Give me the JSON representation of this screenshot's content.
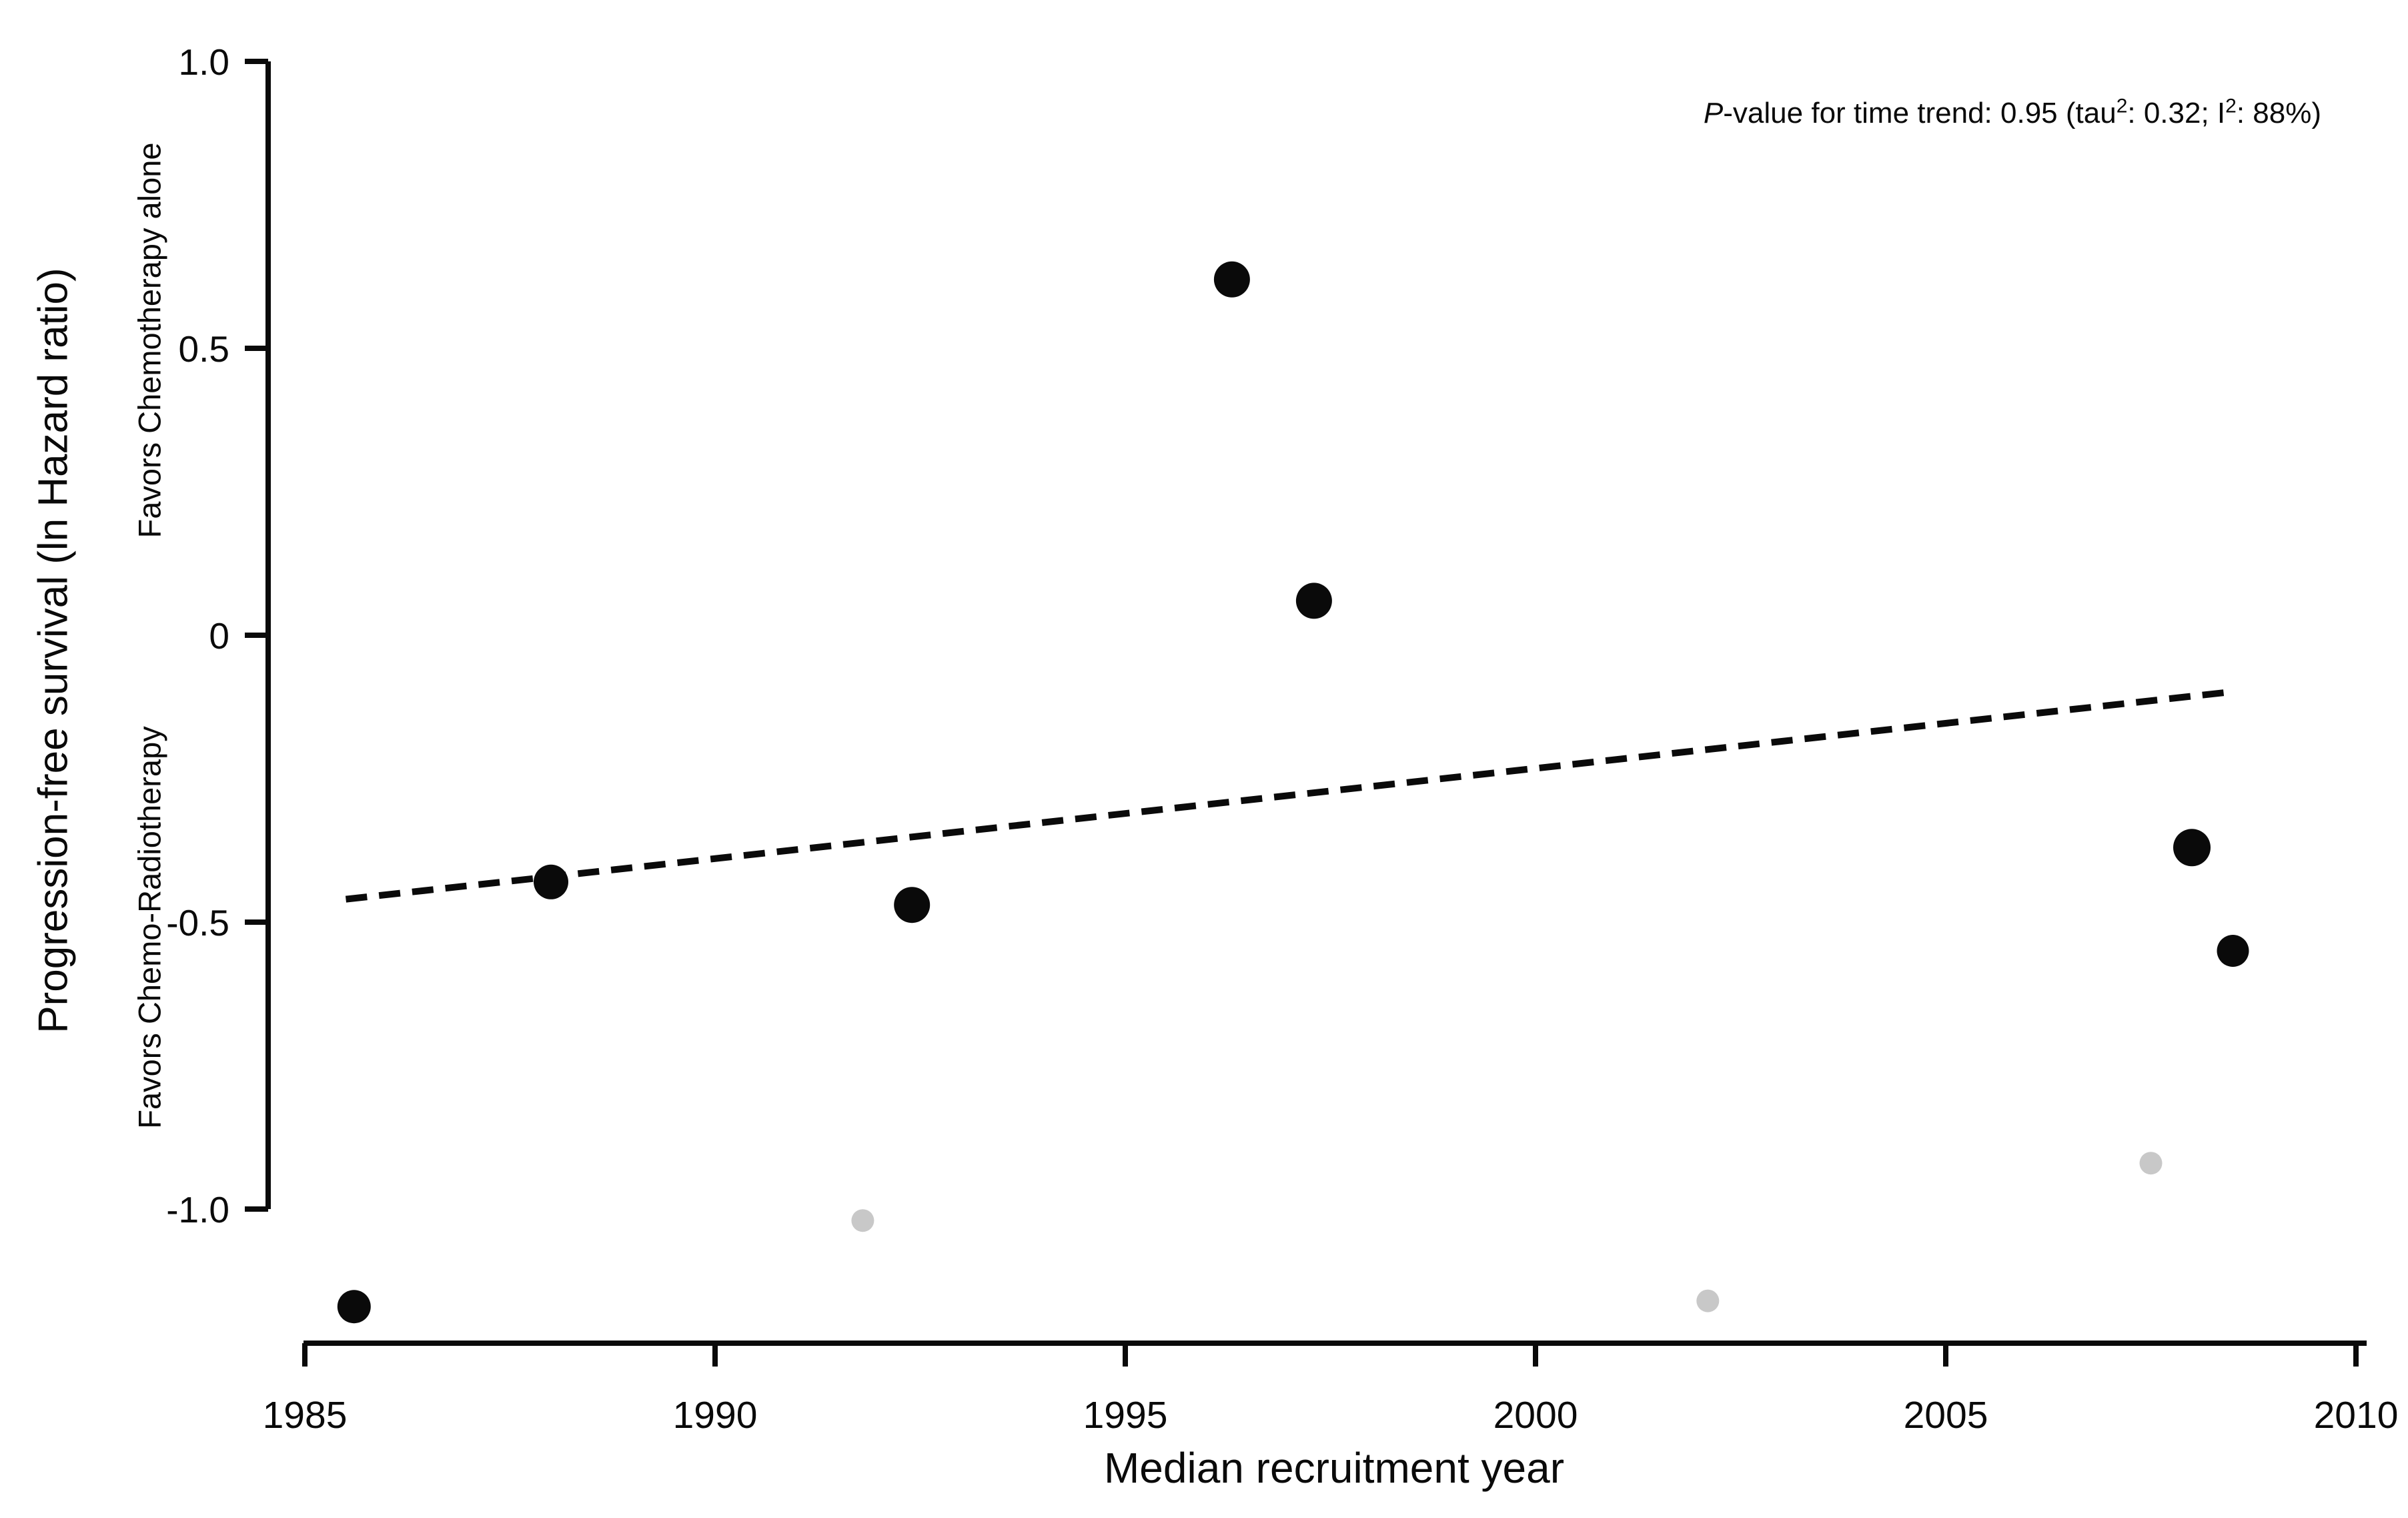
{
  "chart_data": {
    "type": "scatter",
    "title": "",
    "xlabel": "Median recruitment year",
    "ylabel": "Progression-free survival (ln Hazard ratio)",
    "y_sublabel_top": "Favors Chemotherapy alone",
    "y_sublabel_bottom": "Favors Chemo-Radiotherapy",
    "xlim": [
      1985,
      2010
    ],
    "ylim": [
      -1.2,
      1.0
    ],
    "grid": false,
    "legend": "none",
    "x_ticks": [
      {
        "value": 1985,
        "label": "1985"
      },
      {
        "value": 1990,
        "label": "1990"
      },
      {
        "value": 1995,
        "label": "1995"
      },
      {
        "value": 2000,
        "label": "2000"
      },
      {
        "value": 2005,
        "label": "2005"
      },
      {
        "value": 2010,
        "label": "2010"
      }
    ],
    "y_ticks": [
      {
        "value": 1.0,
        "label": "1.0"
      },
      {
        "value": 0.5,
        "label": "0.5"
      },
      {
        "value": 0,
        "label": "0"
      },
      {
        "value": -0.5,
        "label": "-0.5"
      },
      {
        "value": -1.0,
        "label": "-1.0"
      }
    ],
    "points": [
      {
        "year": 1985.6,
        "ln_hr": -1.17,
        "radius": 25,
        "color": "black"
      },
      {
        "year": 1988.0,
        "ln_hr": -0.43,
        "radius": 26,
        "color": "black"
      },
      {
        "year": 1991.8,
        "ln_hr": -1.02,
        "radius": 17,
        "color": "gray"
      },
      {
        "year": 1992.4,
        "ln_hr": -0.47,
        "radius": 27,
        "color": "black"
      },
      {
        "year": 1996.3,
        "ln_hr": 0.62,
        "radius": 27,
        "color": "black"
      },
      {
        "year": 1997.3,
        "ln_hr": 0.06,
        "radius": 27,
        "color": "black"
      },
      {
        "year": 2002.1,
        "ln_hr": -1.16,
        "radius": 17,
        "color": "gray"
      },
      {
        "year": 2007.5,
        "ln_hr": -0.92,
        "radius": 17,
        "color": "gray"
      },
      {
        "year": 2008.0,
        "ln_hr": -0.37,
        "radius": 28,
        "color": "black"
      },
      {
        "year": 2008.5,
        "ln_hr": -0.55,
        "radius": 24,
        "color": "black"
      }
    ],
    "trend_line": {
      "style": "dashed",
      "x1_year": 1985.5,
      "y1_ln_hr": -0.46,
      "x2_year": 2008.4,
      "y2_ln_hr": -0.1
    },
    "colors": {
      "black": "#0a0a0a",
      "gray": "#c8c8c8",
      "axis": "#0a0a0a"
    }
  },
  "annotation": {
    "p_italic": "P",
    "text1": "-value for time trend: 0.95 (tau",
    "sup1": "2",
    "text2": ": 0.32; I",
    "sup2": "2",
    "text3": ": 88%)"
  }
}
